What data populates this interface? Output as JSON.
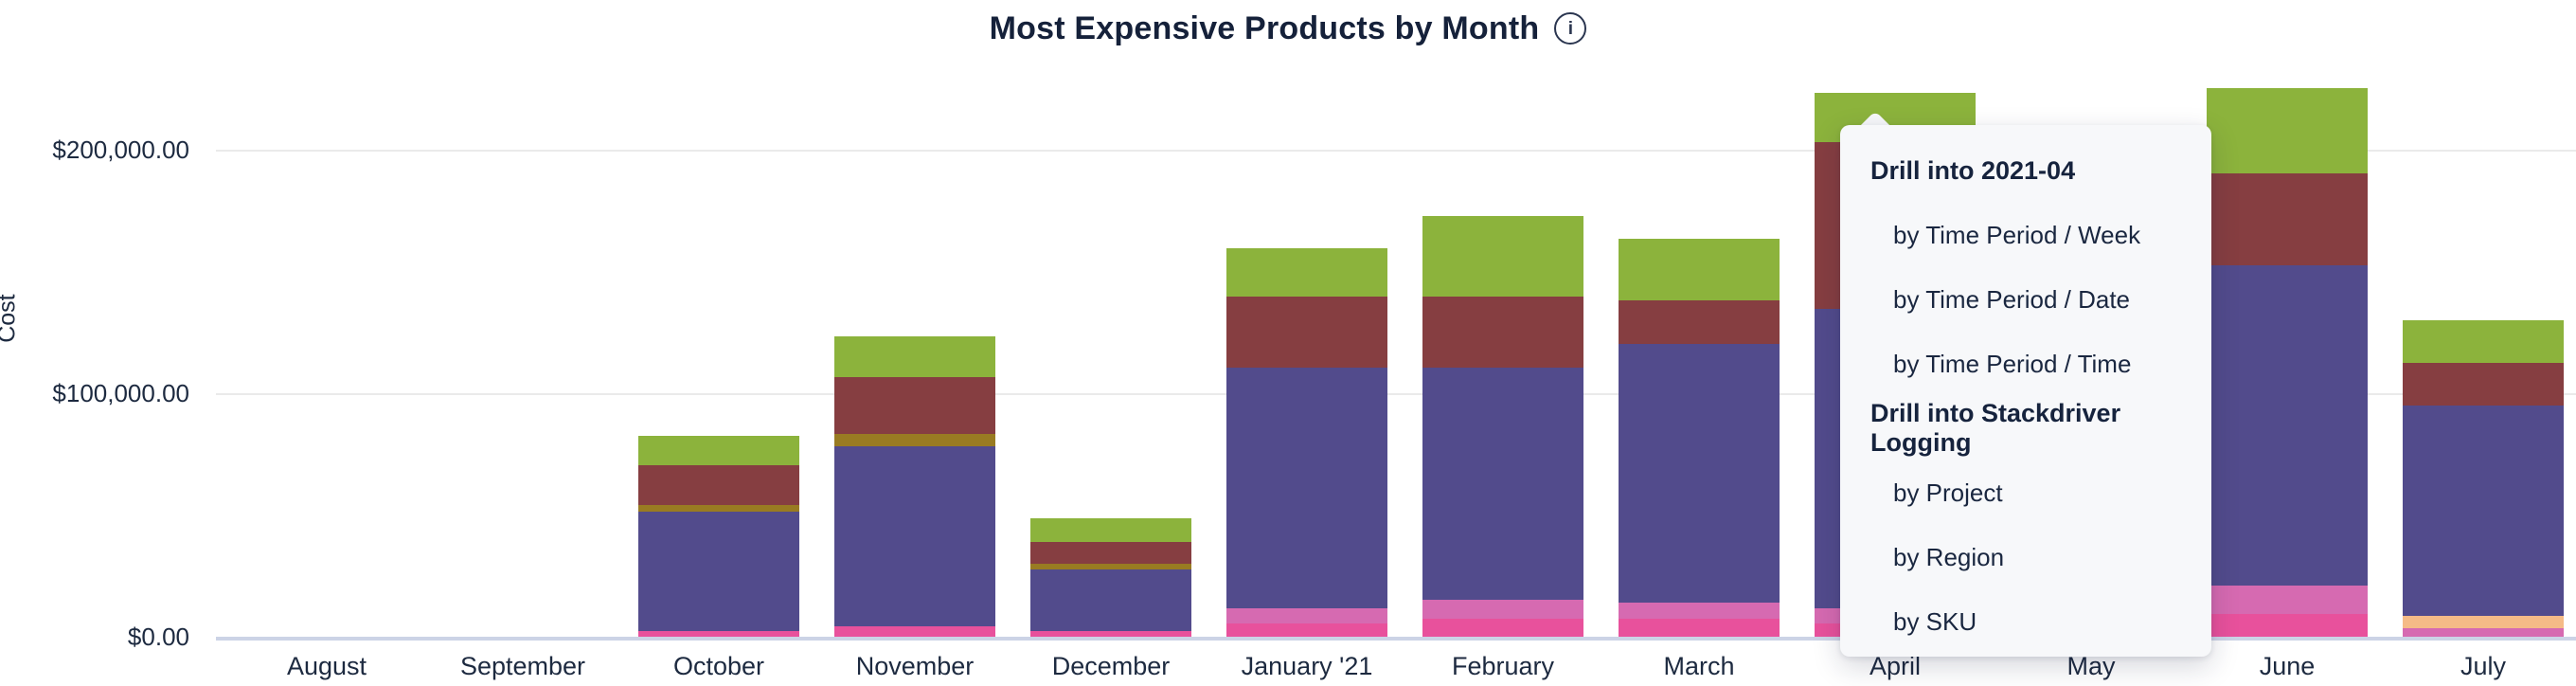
{
  "title": {
    "text": "Most Expensive Products by Month",
    "info_icon": "info"
  },
  "y_axis": {
    "label": "Cost",
    "ticks": [
      "$200,000.00",
      "$100,000.00",
      "$0.00"
    ],
    "tick_values": [
      200000,
      100000,
      0
    ]
  },
  "x_axis": {
    "months": [
      "August",
      "September",
      "October",
      "November",
      "December",
      "January '21",
      "February",
      "March",
      "April",
      "May",
      "June",
      "July"
    ]
  },
  "chart_data": {
    "type": "bar",
    "stacked": true,
    "title": "Most Expensive Products by Month",
    "xlabel": "",
    "ylabel": "Cost",
    "ylim": [
      0,
      230000
    ],
    "grid": "horizontal",
    "legend": "none",
    "categories": [
      "August",
      "September",
      "October",
      "November",
      "December",
      "January '21",
      "February",
      "March",
      "April",
      "May",
      "June",
      "July"
    ],
    "note": "Values estimated from gridlines; May bar is fully occluded by the drill-down menu (null). Series have no visible legend and are keyed by segment color, listed bottom-to-top.",
    "series": [
      {
        "name": "segment-dark-pink",
        "color": "#e8519c",
        "values": [
          0,
          0,
          2300,
          4300,
          2300,
          5400,
          7400,
          7400,
          5400,
          null,
          9300,
          0
        ]
      },
      {
        "name": "segment-light-pink",
        "color": "#d66ab1",
        "values": [
          0,
          0,
          0,
          0,
          0,
          6200,
          7800,
          6600,
          6200,
          null,
          11700,
          3500
        ]
      },
      {
        "name": "segment-orange",
        "color": "#f5bb87",
        "values": [
          0,
          0,
          0,
          0,
          0,
          0,
          0,
          0,
          0,
          null,
          0,
          5100
        ]
      },
      {
        "name": "segment-purple",
        "color": "#524b8c",
        "values": [
          0,
          0,
          49000,
          73900,
          25300,
          98800,
          95300,
          106200,
          123000,
          null,
          131500,
          86400
        ]
      },
      {
        "name": "segment-olive",
        "color": "#997b22",
        "values": [
          0,
          0,
          2700,
          5100,
          2300,
          0,
          0,
          0,
          0,
          null,
          0,
          0
        ]
      },
      {
        "name": "segment-maroon",
        "color": "#863e41",
        "values": [
          0,
          0,
          16300,
          23300,
          8900,
          29200,
          29200,
          17900,
          68500,
          null,
          37700,
          17500
        ]
      },
      {
        "name": "segment-green",
        "color": "#8cb33c",
        "values": [
          0,
          0,
          12100,
          16700,
          9700,
          19800,
          33100,
          25300,
          20200,
          null,
          35000,
          17500
        ]
      }
    ],
    "totals_approx": [
      0,
      0,
      82400,
      123300,
      48500,
      159400,
      172800,
      163400,
      223300,
      null,
      225200,
      130000
    ]
  },
  "context_menu": {
    "rows": [
      {
        "label": "Drill into 2021-04",
        "type": "header"
      },
      {
        "label": "by Time Period / Week",
        "type": "item"
      },
      {
        "label": "by Time Period / Date",
        "type": "item"
      },
      {
        "label": "by Time Period / Time",
        "type": "item"
      },
      {
        "label": "Drill into Stackdriver Logging",
        "type": "header"
      },
      {
        "label": "by Project",
        "type": "item"
      },
      {
        "label": "by Region",
        "type": "item"
      },
      {
        "label": "by SKU",
        "type": "item"
      }
    ]
  },
  "colors": {
    "text_navy": "#17233c",
    "gridline": "#eaeaea",
    "baseline": "#ccd3e6",
    "menu_background": "#f7f8fa"
  }
}
